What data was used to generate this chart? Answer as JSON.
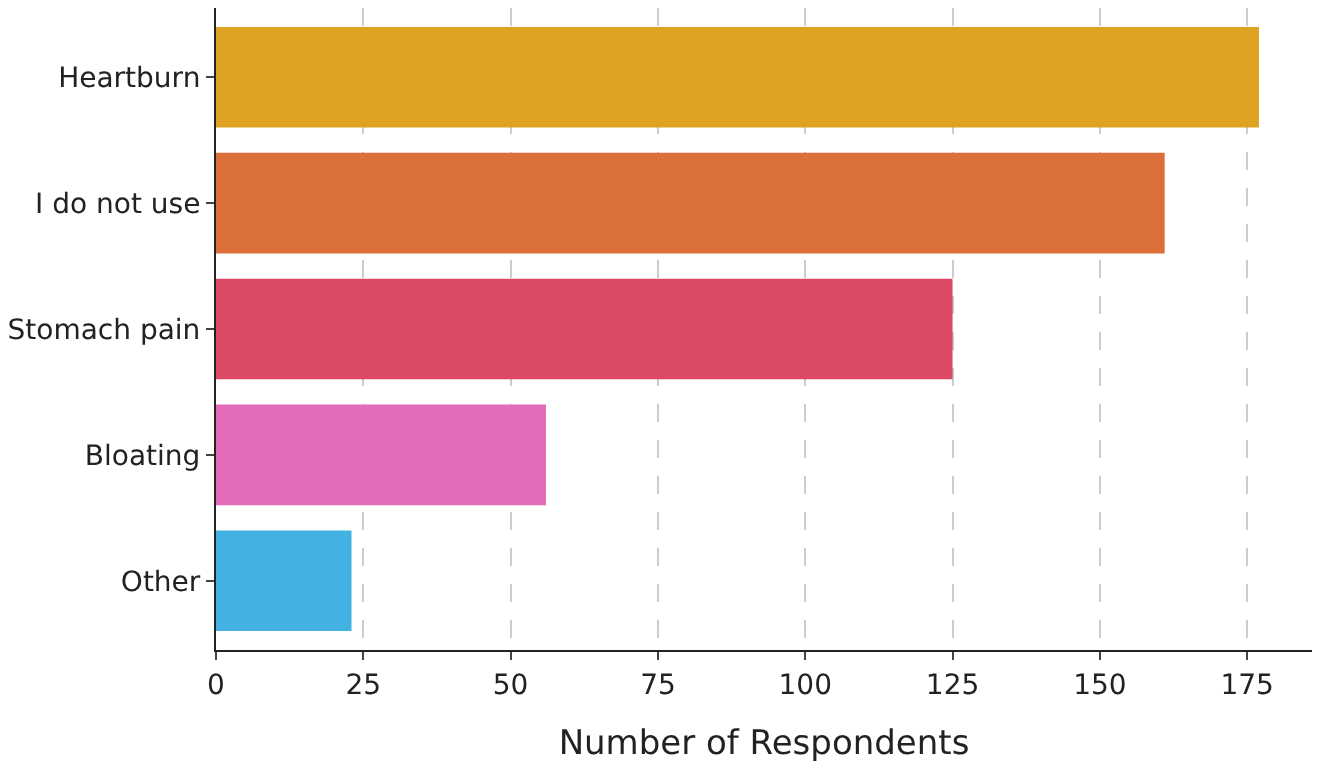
{
  "chart_data": {
    "type": "bar",
    "orientation": "horizontal",
    "xlabel": "Number of Respondents",
    "categories": [
      "Heartburn",
      "I do not use",
      "Stomach pain",
      "Bloating",
      "Other"
    ],
    "values": [
      177,
      161,
      125,
      56,
      23
    ],
    "colors": [
      "#dfa323",
      "#db703b",
      "#dc4a66",
      "#e36bb9",
      "#43b1e1"
    ],
    "xlim": [
      0,
      186
    ],
    "xticks": [
      0,
      25,
      50,
      75,
      100,
      125,
      150,
      175
    ],
    "grid": "x"
  }
}
